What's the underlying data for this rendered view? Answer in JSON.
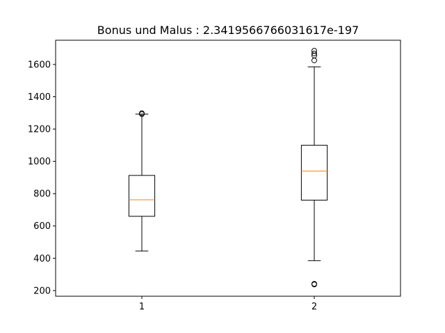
{
  "chart_data": {
    "type": "box",
    "title": "Bonus und Malus :  2.3419566766031617e-197",
    "xlabel": "",
    "ylabel": "",
    "categories": [
      "1",
      "2"
    ],
    "ylim": [
      165,
      1750
    ],
    "yticks": [
      200,
      400,
      600,
      800,
      1000,
      1200,
      1400,
      1600
    ],
    "grid": false,
    "boxes": [
      {
        "category": "1",
        "whisker_low": 445,
        "q1": 660,
        "median": 762,
        "q3": 913,
        "whisker_high": 1293,
        "outliers": [
          1293,
          1298
        ]
      },
      {
        "category": "2",
        "whisker_low": 385,
        "q1": 760,
        "median": 940,
        "q3": 1100,
        "whisker_high": 1585,
        "outliers": [
          238,
          242,
          1625,
          1655,
          1668,
          1685
        ]
      }
    ],
    "colors": {
      "box": "#000000",
      "median": "#ff7f0e",
      "whisker": "#000000",
      "outlier": "#000000"
    }
  }
}
